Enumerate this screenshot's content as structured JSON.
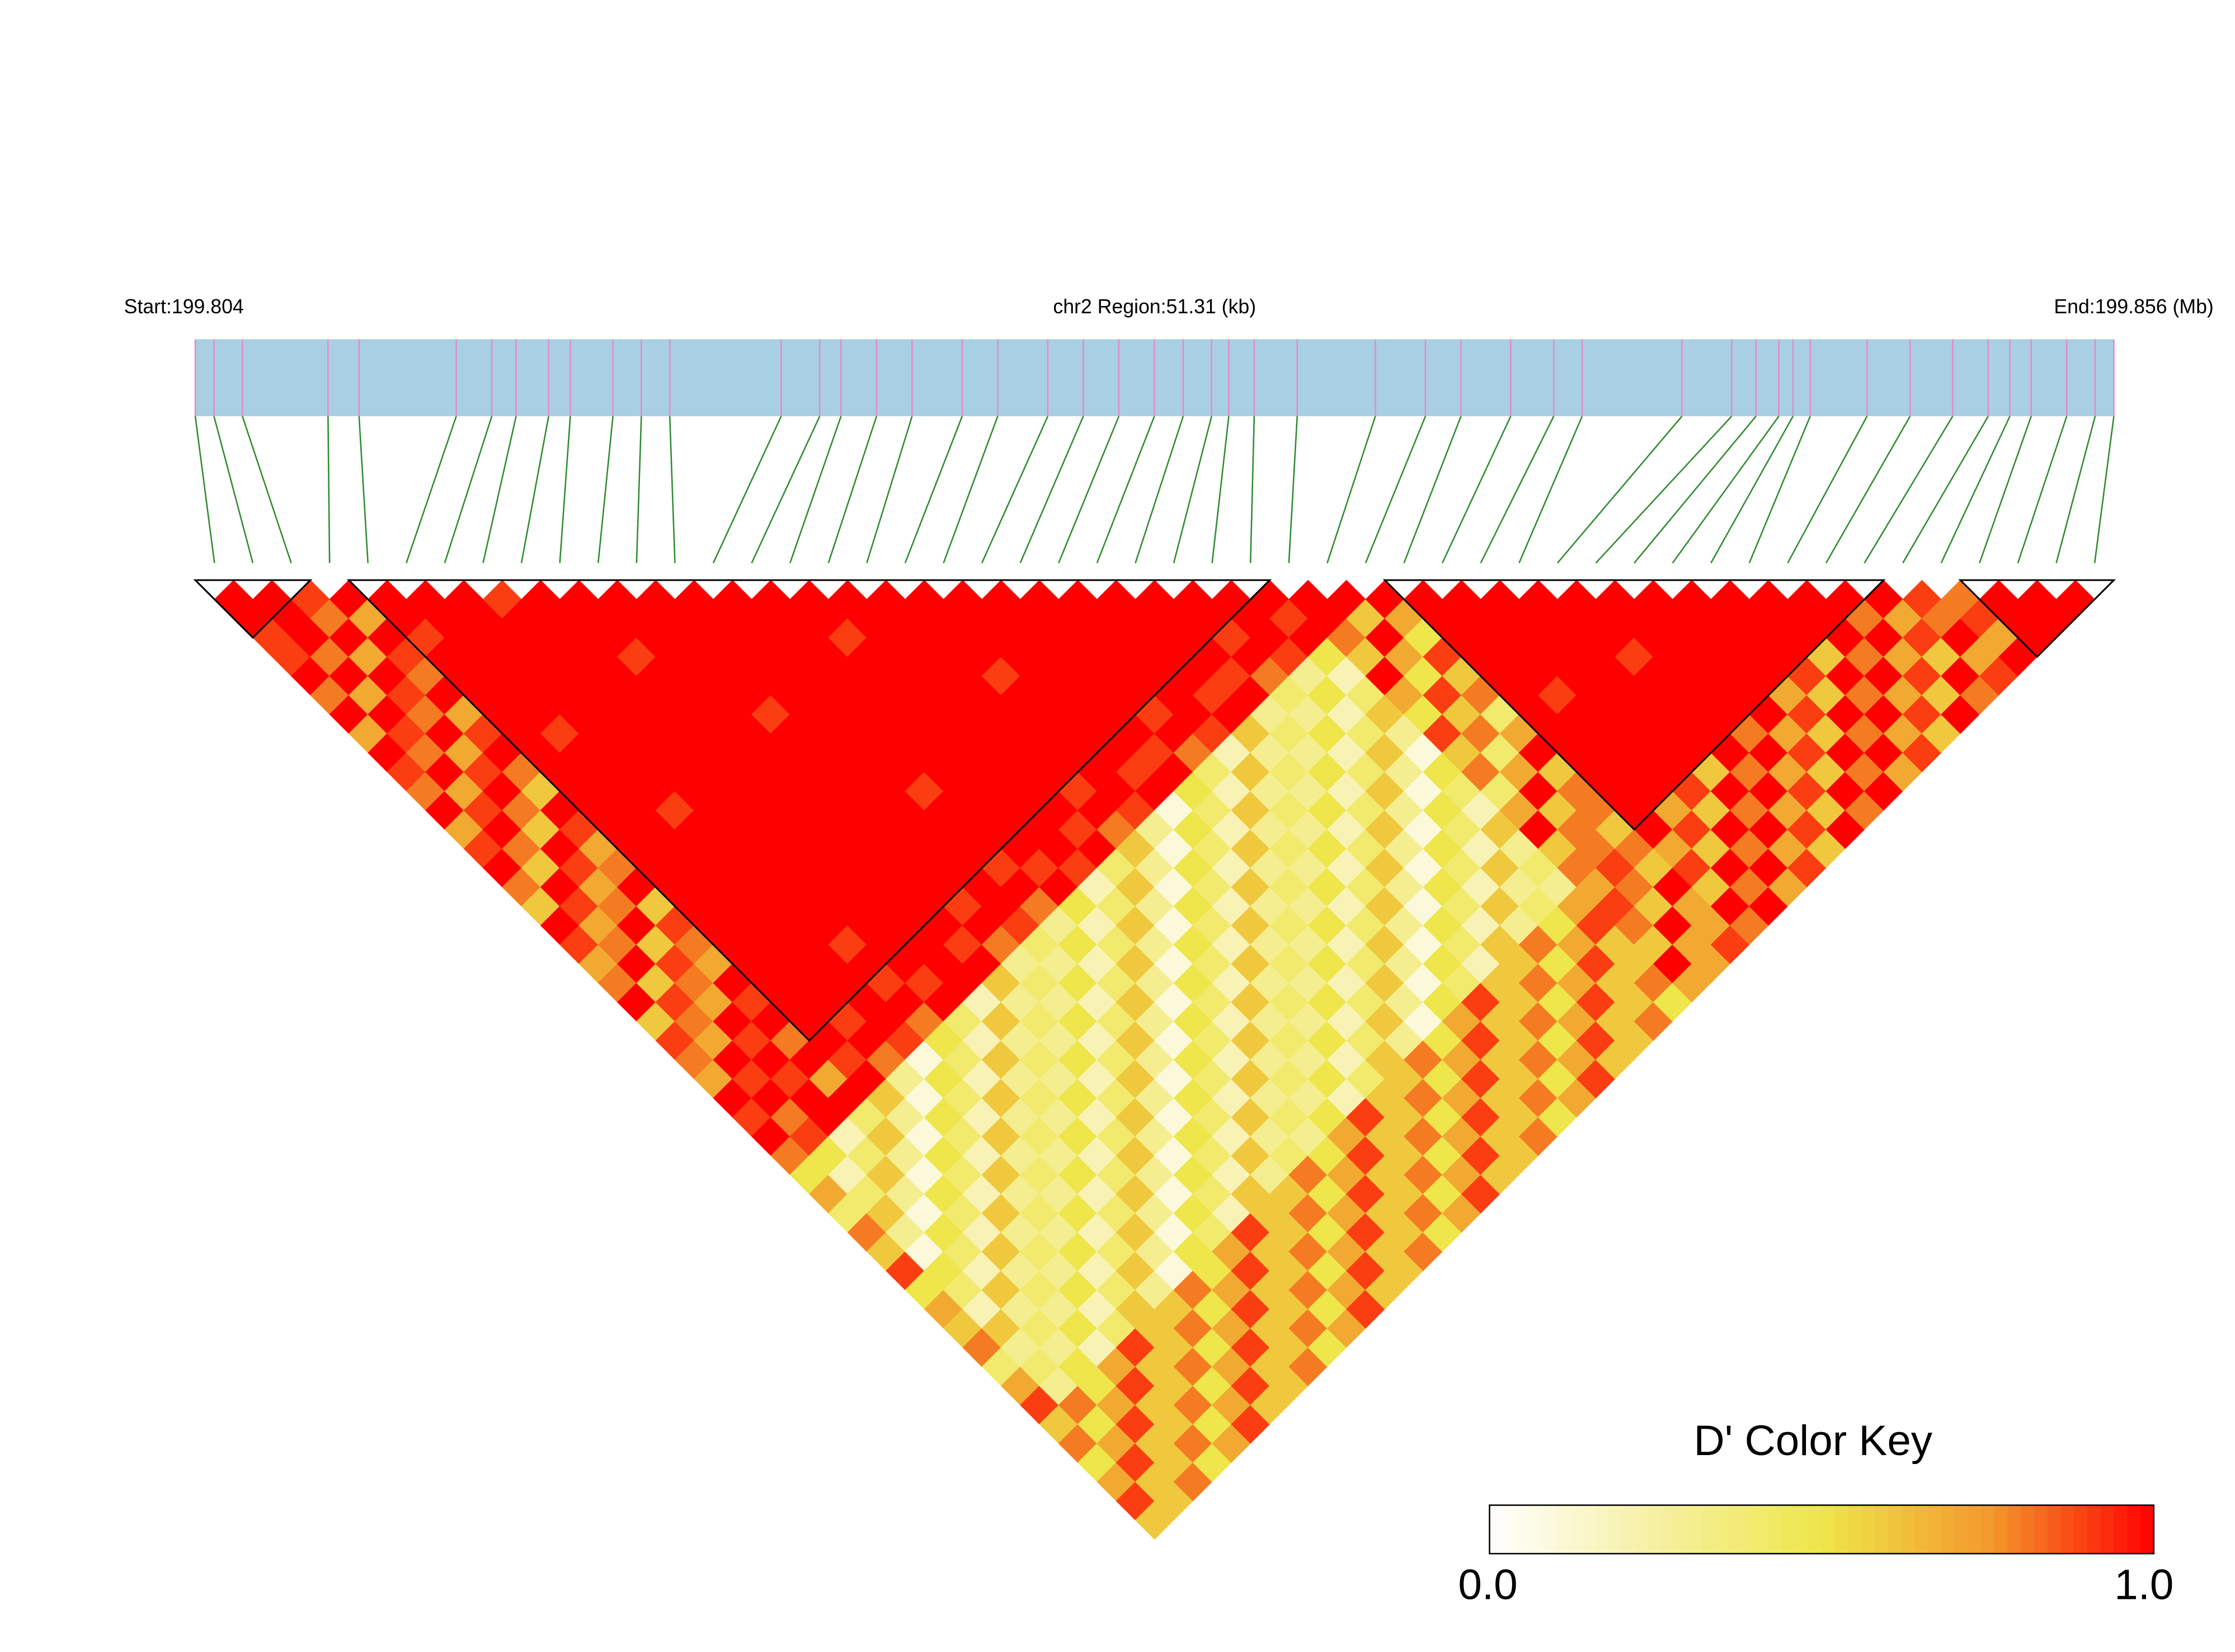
{
  "chart_data": {
    "type": "ld-heatmap",
    "start_label": "Start:199.804",
    "region_label": "chr2 Region:51.31 (kb)",
    "end_label": "End:199.856 (Mb)",
    "xlim": [
      0,
      51.31
    ],
    "positions": [
      0,
      0.5,
      1.26,
      3.55,
      4.38,
      6.98,
      7.93,
      8.58,
      9.45,
      10.03,
      11.17,
      11.93,
      12.69,
      15.67,
      16.7,
      17.27,
      18.22,
      19.17,
      20.51,
      21.46,
      22.8,
      23.75,
      24.7,
      25.65,
      26.42,
      27.18,
      27.64,
      28.32,
      29.47,
      31.56,
      32.9,
      33.85,
      35.18,
      36.33,
      37.09,
      39.76,
      41.09,
      41.74,
      42.35,
      42.73,
      43.19,
      44.71,
      45.86,
      47,
      47.95,
      48.53,
      49.1,
      50.05,
      50.81,
      51.31
    ],
    "blocks": [
      [
        0,
        2
      ],
      [
        4,
        27
      ],
      [
        31,
        43
      ],
      [
        46,
        49
      ]
    ],
    "bar_color": "#a9cfe2",
    "snp_line_color": "#e58acb",
    "connector_color": "#2e8b2e",
    "block_outline_color": "#000000",
    "colors": [
      "#ffffff",
      "#f6f0a2",
      "#eee64a",
      "#f39a2c",
      "#ff0000"
    ],
    "key_title": "D' Color Key",
    "key_ticks": [
      {
        "value": 0,
        "label": "0.0"
      },
      {
        "value": 1,
        "label": "1.0"
      }
    ],
    "dprime": [
      [
        1,
        1,
        0.9,
        0.9,
        1,
        0.8,
        1,
        0.7,
        1,
        0.9,
        0.8,
        1,
        0.7,
        0.9,
        1,
        0.8,
        0.6,
        1,
        0.9,
        0.7,
        0.8,
        1,
        0.6,
        0.9,
        0.8,
        0.7,
        1,
        0.9,
        1,
        0.8,
        0.5,
        0.7,
        0.4,
        0.8,
        0.6,
        0.9,
        0.5,
        0.7,
        0.6,
        0.8,
        0.4,
        0.7,
        0.9,
        0.6,
        0.8,
        0.5,
        0.7,
        0.9,
        0.6
      ],
      [
        1,
        1,
        1,
        0.8,
        1,
        0.7,
        1,
        0.9,
        0.8,
        1,
        0.7,
        0.9,
        1,
        0.8,
        0.6,
        1,
        0.9,
        0.7,
        0.8,
        1,
        0.6,
        0.9,
        0.8,
        0.7,
        1,
        0.9,
        1,
        0.8,
        0.9,
        0.5,
        0.2,
        0.4,
        0.6,
        0.3,
        0.1,
        0.5,
        0.4,
        0.2,
        0.6,
        0.3,
        0.4,
        0.3,
        0.8,
        0.5,
        0.7,
        0.9,
        0.6,
        0.6
      ],
      [
        0.9,
        0.8,
        1,
        0.7,
        1,
        0.9,
        0.8,
        1,
        0.7,
        0.9,
        1,
        0.8,
        0.6,
        1,
        0.9,
        0.7,
        0.8,
        1,
        0.6,
        0.9,
        0.8,
        0.7,
        1,
        0.9,
        1,
        0.9,
        1,
        1,
        0.2,
        0.4,
        0.6,
        0.3,
        0.1,
        0.5,
        0.4,
        0.2,
        0.6,
        0.3,
        0.4,
        0.3,
        0.5,
        0.5,
        0.7,
        0.9,
        0.6,
        0.6,
        0.8
      ],
      [
        1,
        0.7,
        1,
        0.9,
        0.8,
        1,
        0.7,
        0.9,
        1,
        0.8,
        0.6,
        1,
        0.9,
        0.7,
        0.8,
        1,
        0.6,
        0.9,
        0.8,
        0.7,
        1,
        0.9,
        1,
        0.8,
        1,
        0.7,
        1,
        0.4,
        0.6,
        0.3,
        0.1,
        0.5,
        0.4,
        0.2,
        0.6,
        0.3,
        0.4,
        0.3,
        0.5,
        0.2,
        0.7,
        0.9,
        0.6,
        0.6,
        0.8,
        0.5
      ],
      [
        1,
        1,
        0.9,
        1,
        1,
        1,
        1,
        1,
        1,
        1,
        1,
        1,
        1,
        1,
        1,
        1,
        1,
        1,
        1,
        1,
        1,
        1,
        1,
        1,
        0.9,
        1,
        0.6,
        0.3,
        0.1,
        0.5,
        0.4,
        0.2,
        0.6,
        0.3,
        0.4,
        0.3,
        0.5,
        0.2,
        0.4,
        0.9,
        0.6,
        0.6,
        0.8,
        0.5,
        0.7
      ],
      [
        1,
        1,
        1,
        1,
        1,
        1,
        1,
        0.9,
        1,
        1,
        1,
        1,
        1,
        1,
        1,
        1,
        1,
        1,
        1,
        1,
        1,
        1,
        0.9,
        1,
        0.8,
        0.3,
        0.1,
        0.5,
        0.4,
        0.2,
        0.6,
        0.3,
        0.4,
        0.3,
        0.5,
        0.2,
        0.4,
        0.6,
        0.6,
        0.6,
        0.8,
        0.5,
        0.7,
        0.9
      ],
      [
        1,
        1,
        1,
        1,
        1,
        1,
        1,
        1,
        1,
        1,
        1,
        0.9,
        1,
        1,
        1,
        1,
        1,
        1,
        1,
        1,
        1,
        1,
        1,
        0.9,
        0.1,
        0.5,
        0.4,
        0.2,
        0.6,
        0.3,
        0.4,
        0.3,
        0.5,
        0.2,
        0.4,
        0.6,
        0.3,
        0.6,
        0.8,
        0.5,
        0.7,
        0.9,
        0.6
      ],
      [
        0.9,
        1,
        1,
        1,
        1,
        1,
        1,
        1,
        1,
        1,
        1,
        1,
        1,
        1,
        1,
        1,
        1,
        1,
        0.9,
        1,
        0.9,
        1,
        0.8,
        0.5,
        0.4,
        0.2,
        0.6,
        0.3,
        0.4,
        0.3,
        0.5,
        0.2,
        0.4,
        0.6,
        0.3,
        0.1,
        0.8,
        0.5,
        0.7,
        0.9,
        0.6,
        0.6
      ],
      [
        1,
        1,
        1,
        1,
        1,
        1,
        1,
        1,
        1,
        1,
        1,
        1,
        1,
        1,
        1,
        1,
        1,
        1,
        1,
        1,
        0.9,
        1,
        0.4,
        0.2,
        0.6,
        0.3,
        0.4,
        0.3,
        0.5,
        0.2,
        0.4,
        0.6,
        0.3,
        0.1,
        0.5,
        0.5,
        0.7,
        0.9,
        0.6,
        0.6,
        0.8
      ],
      [
        1,
        1,
        1,
        0.9,
        1,
        1,
        1,
        1,
        1,
        1,
        1,
        1,
        1,
        1,
        1,
        1,
        1,
        1,
        1,
        1,
        1,
        0.2,
        0.6,
        0.3,
        0.4,
        0.3,
        0.5,
        0.2,
        0.4,
        0.6,
        0.3,
        0.1,
        0.5,
        0.4,
        0.7,
        0.9,
        0.6,
        0.6,
        0.8,
        0.5
      ],
      [
        1,
        1,
        1,
        1,
        1,
        1,
        1,
        1,
        1,
        1,
        1,
        1,
        1,
        1,
        1,
        1,
        1,
        1,
        0.9,
        1,
        0.6,
        0.3,
        0.4,
        0.3,
        0.5,
        0.2,
        0.4,
        0.6,
        0.3,
        0.1,
        0.5,
        0.4,
        0.2,
        0.9,
        0.6,
        0.6,
        0.8,
        0.5,
        0.7
      ],
      [
        1,
        1,
        1,
        1,
        1,
        1,
        0.9,
        1,
        1,
        1,
        1,
        1,
        1,
        1,
        1,
        1,
        0.9,
        1,
        0.8,
        0.3,
        0.4,
        0.3,
        0.5,
        0.2,
        0.4,
        0.6,
        0.3,
        0.1,
        0.5,
        0.4,
        0.2,
        0.6,
        0.6,
        0.6,
        0.8,
        0.5,
        0.7,
        0.9
      ],
      [
        1,
        1,
        1,
        1,
        1,
        1,
        1,
        1,
        1,
        1,
        1,
        1,
        1,
        1,
        1,
        1,
        1,
        0.9,
        0.4,
        0.3,
        0.5,
        0.2,
        0.4,
        0.6,
        0.3,
        0.1,
        0.5,
        0.4,
        0.2,
        0.6,
        0.3,
        0.6,
        0.8,
        0.5,
        0.7,
        0.9,
        0.6
      ],
      [
        1,
        1,
        1,
        1,
        1,
        1,
        1,
        1,
        1,
        1,
        0.9,
        1,
        1,
        1,
        0.9,
        1,
        0.8,
        0.3,
        0.5,
        0.2,
        0.4,
        0.6,
        0.3,
        0.1,
        0.5,
        0.4,
        0.2,
        0.6,
        0.3,
        0.4,
        0.8,
        0.5,
        0.7,
        0.9,
        0.6,
        0.6
      ],
      [
        1,
        1,
        1,
        1,
        1,
        1,
        1,
        1,
        1,
        1,
        1,
        1,
        1,
        1,
        0.9,
        1,
        0.5,
        0.2,
        0.4,
        0.6,
        0.3,
        0.1,
        0.5,
        0.4,
        0.2,
        0.6,
        0.3,
        0.4,
        0.3,
        0.5,
        0.7,
        0.9,
        0.6,
        0.6,
        0.8
      ],
      [
        1,
        1,
        0.9,
        1,
        1,
        1,
        1,
        1,
        1,
        1,
        1,
        1,
        1,
        1,
        0.9,
        0.2,
        0.4,
        0.6,
        0.3,
        0.1,
        0.5,
        0.4,
        0.2,
        0.6,
        0.3,
        0.4,
        0.3,
        0.5,
        0.7,
        0.9,
        0.6,
        0.6,
        0.8,
        0.5
      ],
      [
        1,
        1,
        1,
        1,
        1,
        1,
        1,
        1,
        1,
        1,
        1,
        1,
        0.9,
        1,
        0.4,
        0.6,
        0.3,
        0.1,
        0.5,
        0.4,
        0.2,
        0.6,
        0.3,
        0.4,
        0.3,
        0.5,
        0.2,
        0.9,
        0.6,
        0.6,
        0.8,
        0.5,
        0.7
      ],
      [
        1,
        1,
        1,
        1,
        1,
        1,
        1,
        1,
        1,
        1,
        0.9,
        1,
        0.8,
        0.6,
        0.3,
        0.1,
        0.5,
        0.4,
        0.2,
        0.6,
        0.3,
        0.4,
        0.3,
        0.5,
        0.2,
        0.4,
        0.6,
        0.6,
        0.8,
        0.5,
        0.7,
        0.9
      ],
      [
        1,
        1,
        1,
        1,
        0.9,
        1,
        1,
        1,
        1,
        1,
        1,
        0.9,
        0.3,
        0.1,
        0.5,
        0.4,
        0.2,
        0.6,
        0.3,
        0.4,
        0.3,
        0.5,
        0.2,
        0.4,
        0.6,
        0.6,
        0.8,
        0.5,
        0.7,
        0.9,
        0.6
      ],
      [
        1,
        1,
        1,
        1,
        1,
        1,
        1,
        1,
        1,
        0.9,
        1,
        0.1,
        0.5,
        0.4,
        0.2,
        0.6,
        0.3,
        0.4,
        0.3,
        0.5,
        0.2,
        0.4,
        0.6,
        0.3,
        0.8,
        0.5,
        0.7,
        0.9,
        0.6,
        0.6
      ],
      [
        1,
        1,
        1,
        1,
        1,
        1,
        1,
        1,
        0.9,
        1,
        0.5,
        0.4,
        0.2,
        0.6,
        0.3,
        0.4,
        0.3,
        0.5,
        0.2,
        0.4,
        0.6,
        0.3,
        0.1,
        0.5,
        0.7,
        0.9,
        0.6,
        0.6,
        0.8
      ],
      [
        1,
        1,
        1,
        1,
        1,
        1,
        0.9,
        1,
        0.8,
        0.4,
        0.2,
        0.6,
        0.3,
        0.4,
        0.3,
        0.5,
        0.2,
        0.4,
        0.6,
        0.3,
        0.1,
        0.5,
        0.7,
        0.9,
        0.6,
        0.6,
        0.8,
        0.5
      ],
      [
        1,
        1,
        1,
        1,
        1,
        1,
        1,
        0.9,
        0.2,
        0.6,
        0.3,
        0.4,
        0.3,
        0.5,
        0.2,
        0.4,
        0.6,
        0.3,
        0.1,
        0.5,
        0.4,
        0.9,
        0.6,
        0.6,
        0.8,
        0.5,
        0.7
      ],
      [
        1,
        1,
        1,
        1,
        1,
        0.9,
        1,
        0.6,
        0.3,
        0.4,
        0.3,
        0.5,
        0.2,
        0.4,
        0.6,
        0.3,
        0.1,
        0.5,
        0.4,
        0.2,
        0.6,
        0.6,
        0.8,
        0.5,
        0.7,
        0.9
      ],
      [
        1,
        1,
        1,
        1,
        0.9,
        1,
        0.3,
        0.4,
        0.3,
        0.5,
        0.2,
        0.4,
        0.6,
        0.3,
        0.1,
        0.5,
        0.4,
        0.2,
        0.6,
        0.6,
        0.8,
        0.5,
        0.7,
        0.9,
        0.6
      ],
      [
        1,
        1,
        0.9,
        1,
        0.8,
        0.4,
        0.3,
        0.5,
        0.2,
        0.4,
        0.6,
        0.3,
        0.1,
        0.5,
        0.4,
        0.2,
        0.6,
        0.3,
        0.8,
        0.5,
        0.7,
        0.9,
        0.6,
        0.6
      ],
      [
        1,
        1,
        1,
        0.9,
        0.3,
        0.5,
        0.2,
        0.4,
        0.6,
        0.3,
        0.1,
        0.5,
        0.4,
        0.2,
        0.6,
        0.3,
        0.4,
        0.5,
        0.7,
        0.9,
        0.6,
        0.6,
        0.8
      ],
      [
        1,
        0.9,
        1,
        0.5,
        0.2,
        0.4,
        0.6,
        0.3,
        0.1,
        0.5,
        0.4,
        0.2,
        0.6,
        0.3,
        0.4,
        0.3,
        0.7,
        0.9,
        0.6,
        0.6,
        0.8,
        0.5
      ],
      [
        1,
        1,
        0.8,
        0.6,
        1,
        0.7,
        0.5,
        0.9,
        0.6,
        0.8,
        0.4,
        0.7,
        1,
        0.6,
        0.8,
        0.7,
        0.9,
        0.8,
        0.6,
        1,
        0.7
      ],
      [
        1,
        0.6,
        1,
        0.7,
        0.5,
        0.9,
        0.6,
        0.8,
        0.4,
        0.7,
        1,
        0.6,
        0.8,
        0.8,
        0.9,
        0.8,
        0.6,
        1,
        0.7,
        0.7
      ],
      [
        1,
        0.7,
        0.5,
        0.9,
        0.6,
        0.8,
        0.4,
        0.7,
        1,
        0.6,
        0.8,
        0.8,
        0.6,
        0.8,
        0.6,
        1,
        0.7,
        0.7,
        0.9
      ],
      [
        1,
        1,
        1,
        1,
        1,
        1,
        1,
        1,
        1,
        1,
        1,
        1,
        1,
        0.7,
        0.9,
        0.6,
        1,
        0.8
      ],
      [
        1,
        1,
        1,
        1,
        1,
        0.9,
        1,
        1,
        1,
        1,
        1,
        0.7,
        0.9,
        0.6,
        1,
        0.8,
        1
      ],
      [
        1,
        1,
        1,
        1,
        1,
        1,
        1,
        1,
        1,
        1,
        0.9,
        0.6,
        1,
        0.8,
        1,
        0.7
      ],
      [
        1,
        1,
        1,
        1,
        1,
        1,
        1,
        1,
        1,
        0.6,
        1,
        0.8,
        1,
        0.7,
        0.9
      ],
      [
        1,
        1,
        1,
        0.9,
        1,
        1,
        1,
        1,
        1,
        0.8,
        1,
        0.7,
        0.9,
        0.6
      ],
      [
        1,
        1,
        1,
        1,
        1,
        1,
        1,
        0.8,
        1,
        0.7,
        0.9,
        0.6,
        1
      ],
      [
        1,
        1,
        1,
        1,
        1,
        1,
        1,
        0.7,
        0.9,
        0.6,
        1,
        0.8
      ],
      [
        1,
        1,
        1,
        1,
        1,
        0.7,
        0.9,
        0.6,
        1,
        0.8,
        1
      ],
      [
        1,
        1,
        1,
        1,
        0.9,
        0.6,
        1,
        0.8,
        1,
        0.7
      ],
      [
        1,
        1,
        1,
        0.6,
        1,
        0.8,
        1,
        0.7,
        0.9
      ],
      [
        1,
        1,
        1,
        0.8,
        1,
        0.7,
        0.9,
        0.6
      ],
      [
        1,
        0.8,
        1,
        0.7,
        0.9,
        0.6,
        1
      ],
      [
        1,
        0.7,
        0.9,
        0.6,
        1,
        0.8
      ],
      [
        0.9,
        0.8,
        1,
        0.7,
        0.9
      ],
      [
        0.8,
        0.9,
        0.7,
        1
      ],
      [
        1,
        1,
        1
      ],
      [
        1,
        1
      ],
      [
        1
      ]
    ]
  }
}
